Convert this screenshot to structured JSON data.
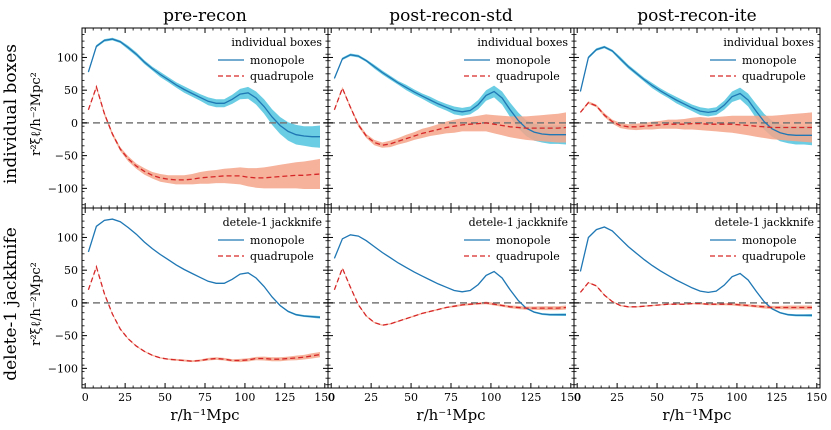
{
  "figure": {
    "column_titles": [
      "pre-recon",
      "post-recon-std",
      "post-recon-ite"
    ],
    "row_titles": [
      "individual boxes",
      "delete-1 jackknife"
    ],
    "ylabel_text": "r²ξℓ/h⁻²Mpc²",
    "xlabel_text": "r/h⁻¹Mpc",
    "legend_titles": [
      "individual boxes",
      "detele-1 jackknife"
    ],
    "legend_labels": [
      "monopole",
      "quadrupole"
    ],
    "colors": {
      "monopole": "#1f77b4",
      "monopole_band": "#5bc8e0",
      "quadrupole": "#d62728",
      "quadrupole_band": "#f4a58a",
      "zero_line": "#777777"
    }
  },
  "chart_data": {
    "type": "line",
    "layout": "2x3 grid",
    "xlim": [
      -2,
      152
    ],
    "ylim": [
      -130,
      145
    ],
    "xticks": [
      0,
      25,
      50,
      75,
      100,
      125,
      150
    ],
    "yticks": [
      -100,
      -50,
      0,
      50,
      100
    ],
    "x": [
      2,
      7,
      12,
      17,
      22,
      27,
      32,
      37,
      42,
      47,
      52,
      57,
      62,
      67,
      72,
      77,
      82,
      87,
      92,
      97,
      102,
      107,
      112,
      117,
      122,
      127,
      132,
      137,
      142,
      147
    ],
    "panels": [
      {
        "row": "individual boxes",
        "column": "pre-recon",
        "legend_title": "individual boxes",
        "series": [
          {
            "name": "monopole",
            "values": [
              78,
              117,
              126,
              128,
              124,
              115,
              105,
              93,
              83,
              74,
              66,
              58,
              51,
              45,
              39,
              33,
              30,
              30,
              36,
              44,
              46,
              38,
              25,
              9,
              -4,
              -13,
              -18,
              -20,
              -21,
              -21
            ],
            "err": [
              2,
              2,
              2,
              2,
              2,
              3,
              3,
              3,
              3,
              4,
              4,
              4,
              5,
              5,
              5,
              6,
              6,
              6,
              7,
              8,
              9,
              10,
              11,
              12,
              13,
              14,
              15,
              15,
              16,
              17
            ]
          },
          {
            "name": "quadrupole",
            "values": [
              20,
              55,
              14,
              -17,
              -40,
              -55,
              -66,
              -74,
              -80,
              -84,
              -86,
              -87,
              -87,
              -86,
              -84,
              -83,
              -82,
              -81,
              -81,
              -81,
              -83,
              -84,
              -84,
              -83,
              -82,
              -81,
              -80,
              -80,
              -79,
              -78
            ],
            "err": [
              1,
              2,
              3,
              3,
              3,
              4,
              4,
              5,
              5,
              6,
              6,
              7,
              7,
              8,
              9,
              10,
              10,
              11,
              12,
              13,
              14,
              15,
              16,
              17,
              18,
              19,
              20,
              21,
              22,
              23
            ]
          }
        ]
      },
      {
        "row": "individual boxes",
        "column": "post-recon-std",
        "legend_title": "individual boxes",
        "series": [
          {
            "name": "monopole",
            "values": [
              68,
              98,
              104,
              102,
              95,
              86,
              77,
              69,
              61,
              54,
              47,
              41,
              35,
              29,
              24,
              19,
              17,
              19,
              28,
              42,
              48,
              38,
              20,
              4,
              -8,
              -14,
              -17,
              -18,
              -18,
              -18
            ],
            "err": [
              2,
              2,
              2,
              2,
              2,
              3,
              3,
              3,
              3,
              4,
              4,
              4,
              5,
              5,
              5,
              6,
              6,
              6,
              7,
              8,
              9,
              10,
              11,
              12,
              12,
              13,
              13,
              14,
              14,
              15
            ]
          },
          {
            "name": "quadrupole",
            "values": [
              20,
              53,
              24,
              -3,
              -20,
              -30,
              -34,
              -32,
              -28,
              -24,
              -20,
              -16,
              -13,
              -10,
              -7,
              -5,
              -3,
              -2,
              -1,
              0,
              -2,
              -4,
              -6,
              -7,
              -8,
              -8,
              -8,
              -8,
              -8,
              -7
            ],
            "err": [
              1,
              2,
              2,
              3,
              3,
              4,
              4,
              5,
              5,
              6,
              6,
              7,
              7,
              8,
              9,
              10,
              10,
              11,
              12,
              13,
              14,
              15,
              16,
              17,
              18,
              19,
              20,
              21,
              22,
              23
            ]
          }
        ]
      },
      {
        "row": "individual boxes",
        "column": "post-recon-ite",
        "legend_title": "individual boxes",
        "series": [
          {
            "name": "monopole",
            "values": [
              48,
              100,
              112,
              116,
              110,
              98,
              86,
              76,
              66,
              57,
              49,
              42,
              35,
              29,
              23,
              18,
              16,
              18,
              27,
              40,
              45,
              35,
              18,
              2,
              -9,
              -15,
              -18,
              -19,
              -19,
              -19
            ],
            "err": [
              2,
              2,
              2,
              2,
              2,
              3,
              3,
              3,
              3,
              4,
              4,
              4,
              5,
              5,
              5,
              6,
              6,
              6,
              7,
              8,
              9,
              10,
              11,
              12,
              12,
              13,
              13,
              14,
              14,
              15
            ]
          },
          {
            "name": "quadrupole",
            "values": [
              16,
              31,
              26,
              12,
              2,
              -4,
              -6,
              -6,
              -5,
              -4,
              -3,
              -2,
              -2,
              -2,
              -1,
              -1,
              -2,
              -2,
              -2,
              -2,
              -3,
              -4,
              -5,
              -6,
              -7,
              -7,
              -7,
              -7,
              -7,
              -7
            ],
            "err": [
              1,
              2,
              2,
              3,
              3,
              4,
              4,
              5,
              5,
              6,
              6,
              7,
              7,
              8,
              9,
              10,
              10,
              11,
              12,
              13,
              14,
              15,
              16,
              17,
              18,
              19,
              20,
              21,
              22,
              23
            ]
          }
        ]
      },
      {
        "row": "delete-1 jackknife",
        "column": "pre-recon",
        "legend_title": "detele-1 jackknife",
        "series": [
          {
            "name": "monopole",
            "values": [
              78,
              117,
              126,
              128,
              124,
              115,
              105,
              93,
              83,
              74,
              66,
              58,
              51,
              45,
              39,
              33,
              30,
              30,
              36,
              44,
              46,
              38,
              25,
              9,
              -4,
              -13,
              -18,
              -20,
              -21,
              -22
            ],
            "err": [
              0.5,
              0.5,
              0.5,
              0.5,
              0.5,
              0.5,
              0.5,
              0.5,
              0.5,
              0.5,
              0.5,
              0.5,
              0.5,
              0.5,
              0.5,
              0.5,
              0.5,
              0.5,
              0.5,
              0.6,
              0.6,
              0.7,
              0.8,
              0.9,
              1,
              1.2,
              1.4,
              1.6,
              1.8,
              2
            ]
          },
          {
            "name": "quadrupole",
            "values": [
              20,
              55,
              14,
              -17,
              -40,
              -55,
              -66,
              -74,
              -80,
              -84,
              -86,
              -87,
              -88,
              -89,
              -88,
              -86,
              -85,
              -86,
              -88,
              -88,
              -87,
              -85,
              -85,
              -86,
              -86,
              -85,
              -84,
              -83,
              -81,
              -79
            ],
            "err": [
              0.5,
              1,
              1,
              1,
              1,
              1,
              1,
              1,
              1,
              1,
              1,
              1.5,
              1.5,
              1.5,
              1.5,
              2,
              2,
              2,
              2,
              2.5,
              2.5,
              2.5,
              3,
              3,
              3,
              3,
              3.5,
              3.5,
              4,
              4
            ]
          }
        ]
      },
      {
        "row": "delete-1 jackknife",
        "column": "post-recon-std",
        "legend_title": "detele-1 jackknife",
        "series": [
          {
            "name": "monopole",
            "values": [
              68,
              98,
              104,
              102,
              95,
              86,
              77,
              69,
              61,
              54,
              47,
              41,
              35,
              29,
              24,
              19,
              17,
              19,
              28,
              42,
              48,
              38,
              20,
              4,
              -8,
              -14,
              -17,
              -18,
              -18,
              -18
            ],
            "err": [
              0.5,
              0.5,
              0.5,
              0.5,
              0.5,
              0.5,
              0.5,
              0.5,
              0.5,
              0.5,
              0.5,
              0.5,
              0.5,
              0.5,
              0.5,
              0.5,
              0.5,
              0.5,
              0.5,
              0.6,
              0.6,
              0.7,
              0.8,
              0.9,
              1,
              1.2,
              1.4,
              1.6,
              1.8,
              2
            ]
          },
          {
            "name": "quadrupole",
            "values": [
              20,
              53,
              24,
              -3,
              -20,
              -30,
              -34,
              -32,
              -28,
              -24,
              -20,
              -16,
              -13,
              -10,
              -7,
              -5,
              -3,
              -2,
              -1,
              0,
              -2,
              -4,
              -6,
              -7,
              -8,
              -8,
              -8,
              -8,
              -8,
              -7
            ],
            "err": [
              0.5,
              1,
              1,
              1,
              1,
              1,
              1,
              1,
              1,
              1,
              1,
              1,
              1,
              1,
              1,
              1.5,
              1.5,
              1.5,
              1.5,
              2,
              2,
              2,
              2,
              2.5,
              2.5,
              2.5,
              3,
              3,
              3,
              3
            ]
          }
        ]
      },
      {
        "row": "delete-1 jackknife",
        "column": "post-recon-ite",
        "legend_title": "detele-1 jackknife",
        "series": [
          {
            "name": "monopole",
            "values": [
              48,
              100,
              112,
              116,
              110,
              98,
              86,
              76,
              66,
              57,
              49,
              42,
              35,
              29,
              23,
              18,
              16,
              18,
              27,
              40,
              45,
              35,
              18,
              2,
              -9,
              -15,
              -18,
              -19,
              -19,
              -19
            ],
            "err": [
              0.5,
              0.5,
              0.5,
              0.5,
              0.5,
              0.5,
              0.5,
              0.5,
              0.5,
              0.5,
              0.5,
              0.5,
              0.5,
              0.5,
              0.5,
              0.5,
              0.5,
              0.5,
              0.5,
              0.6,
              0.6,
              0.7,
              0.8,
              0.9,
              1,
              1.2,
              1.4,
              1.6,
              1.8,
              2
            ]
          },
          {
            "name": "quadrupole",
            "values": [
              16,
              31,
              26,
              12,
              2,
              -4,
              -6,
              -6,
              -5,
              -4,
              -3,
              -2,
              -2,
              -2,
              -1,
              -1,
              -2,
              -2,
              -2,
              -2,
              -3,
              -4,
              -5,
              -6,
              -7,
              -7,
              -7,
              -7,
              -7,
              -7
            ],
            "err": [
              0.5,
              1,
              1,
              1,
              1,
              1,
              1,
              1,
              1,
              1,
              1,
              1,
              1,
              1,
              1,
              1.5,
              1.5,
              1.5,
              1.5,
              2,
              2,
              2,
              2,
              2.5,
              2.5,
              2.5,
              3,
              3,
              3,
              3
            ]
          }
        ]
      }
    ]
  }
}
